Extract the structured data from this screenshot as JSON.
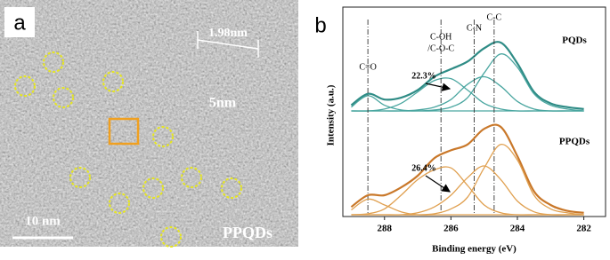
{
  "panel_a": {
    "label": "a",
    "inset_size": "1.98nm",
    "inset_scale": "5nm",
    "scale_bar": "10 nm",
    "sample": "PPQDs"
  },
  "panel_b": {
    "label": "b",
    "ylabel": "Intensity (a.u.)"
  },
  "chart_data": [
    {
      "type": "line",
      "label": "PQDs",
      "annotation": "22.3%",
      "x": [
        289,
        288.5,
        288,
        287.5,
        287,
        286.5,
        286,
        285.5,
        285,
        284.5,
        284,
        283.5,
        283,
        282.5,
        282
      ],
      "xlim": [
        289.2,
        281.4
      ],
      "ylim": [
        0,
        100
      ],
      "peak_labels": [
        {
          "label": [
            "C=O"
          ],
          "value": 288.5
        },
        {
          "label": [
            "C-OH",
            "/C-O-C"
          ],
          "value": 286.3
        },
        {
          "label": [
            "C-N"
          ],
          "value": 285.3
        },
        {
          "label": [
            "C-C"
          ],
          "value": 284.7
        }
      ],
      "series": [
        {
          "color": "#2f8c86",
          "values": [
            6,
            18,
            12,
            14,
            22,
            36,
            44,
            52,
            66,
            72,
            50,
            20,
            8,
            4,
            2
          ]
        },
        {
          "color": "#4aa6a0",
          "values": [
            4,
            16,
            6,
            1,
            0,
            0,
            0,
            0,
            0,
            0,
            0,
            0,
            0,
            0,
            0
          ]
        },
        {
          "color": "#4aa6a0",
          "values": [
            0,
            0,
            2,
            8,
            20,
            32,
            34,
            22,
            8,
            2,
            0,
            0,
            0,
            0,
            0
          ]
        },
        {
          "color": "#4aa6a0",
          "values": [
            0,
            0,
            0,
            0,
            1,
            4,
            12,
            28,
            36,
            26,
            10,
            2,
            0,
            0,
            0
          ]
        },
        {
          "color": "#4aa6a0",
          "values": [
            0,
            0,
            0,
            0,
            0,
            1,
            4,
            14,
            40,
            60,
            46,
            18,
            6,
            2,
            0
          ]
        }
      ]
    },
    {
      "type": "line",
      "label": "PPQDs",
      "annotation": "26.4%",
      "xlabel": "Binding energy (eV)",
      "x": [
        289,
        288.5,
        288,
        287.5,
        287,
        286.5,
        286,
        285.5,
        285,
        284.5,
        284,
        283.5,
        283,
        282.5,
        282
      ],
      "xlim": [
        289.2,
        281.4
      ],
      "ylim": [
        0,
        100
      ],
      "xticks": [
        288,
        286,
        284,
        282
      ],
      "series": [
        {
          "color": "#c9782a",
          "values": [
            8,
            20,
            20,
            28,
            40,
            58,
            66,
            72,
            88,
            90,
            60,
            24,
            10,
            4,
            2
          ]
        },
        {
          "color": "#e0a050",
          "values": [
            5,
            16,
            10,
            3,
            0,
            0,
            0,
            0,
            0,
            0,
            0,
            0,
            0,
            0,
            0
          ]
        },
        {
          "color": "#e0a050",
          "values": [
            0,
            1,
            6,
            20,
            36,
            46,
            48,
            30,
            10,
            2,
            0,
            0,
            0,
            0,
            0
          ]
        },
        {
          "color": "#e0a050",
          "values": [
            0,
            0,
            0,
            0,
            2,
            8,
            20,
            38,
            50,
            36,
            14,
            3,
            0,
            0,
            0
          ]
        },
        {
          "color": "#e0a050",
          "values": [
            0,
            0,
            0,
            0,
            0,
            1,
            6,
            18,
            48,
            72,
            56,
            20,
            6,
            2,
            0
          ]
        }
      ]
    }
  ]
}
